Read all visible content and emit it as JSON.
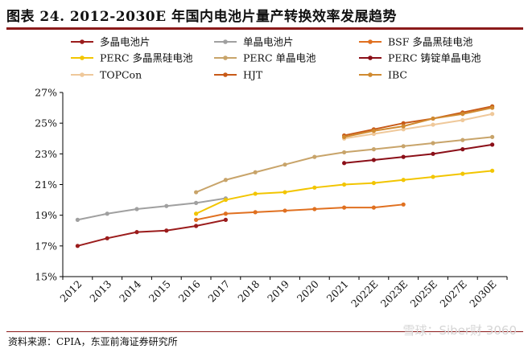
{
  "title": "图表 24. 2012-2030E 年国内电池片量产转换效率发展趋势",
  "source": "资料来源：CPIA，东亚前海证券研究所",
  "watermark": "雪球：Siber财 3060",
  "chart_data": {
    "type": "line",
    "categories": [
      "2012",
      "2013",
      "2014",
      "2015",
      "2016",
      "2017",
      "2018",
      "2019",
      "2020",
      "2021",
      "2022E",
      "2023E",
      "2025E",
      "2027E",
      "2030E"
    ],
    "ylim": [
      15,
      27
    ],
    "yticks": [
      "15%",
      "17%",
      "19%",
      "21%",
      "23%",
      "25%",
      "27%"
    ],
    "grid": false,
    "legend_position": "top",
    "series": [
      {
        "name": "多晶电池片",
        "color": "#9b1c1c",
        "values": [
          17.0,
          17.5,
          17.9,
          18.0,
          18.3,
          18.7,
          null,
          null,
          null,
          null,
          null,
          null,
          null,
          null,
          null
        ]
      },
      {
        "name": "单晶电池片",
        "color": "#a0a0a0",
        "values": [
          18.7,
          19.1,
          19.4,
          19.6,
          19.8,
          20.1,
          null,
          null,
          null,
          null,
          null,
          null,
          null,
          null,
          null
        ]
      },
      {
        "name": "BSF 多晶黑硅电池",
        "color": "#e07020",
        "values": [
          null,
          null,
          null,
          null,
          18.7,
          19.1,
          19.2,
          19.3,
          19.4,
          19.5,
          19.5,
          19.7,
          null,
          null,
          null
        ]
      },
      {
        "name": "PERC 多晶黑硅电池",
        "color": "#f2c500",
        "values": [
          null,
          null,
          null,
          null,
          19.1,
          20.0,
          20.4,
          20.5,
          20.8,
          21.0,
          21.1,
          21.3,
          21.5,
          21.7,
          21.9
        ]
      },
      {
        "name": "PERC 单晶电池",
        "color": "#c8a46a",
        "values": [
          null,
          null,
          null,
          null,
          20.5,
          21.3,
          21.8,
          22.3,
          22.8,
          23.1,
          23.3,
          23.5,
          23.7,
          23.9,
          24.1
        ]
      },
      {
        "name": "PERC 铸锭单晶电池",
        "color": "#8b0f18",
        "values": [
          null,
          null,
          null,
          null,
          null,
          null,
          null,
          null,
          null,
          22.4,
          22.6,
          22.8,
          23.0,
          23.3,
          23.6
        ]
      },
      {
        "name": "TOPCon",
        "color": "#efc89a",
        "values": [
          null,
          null,
          null,
          null,
          null,
          null,
          null,
          null,
          null,
          24.0,
          24.3,
          24.6,
          24.9,
          25.2,
          25.6
        ]
      },
      {
        "name": "HJT",
        "color": "#c85a18",
        "values": [
          null,
          null,
          null,
          null,
          null,
          null,
          null,
          null,
          null,
          24.2,
          24.6,
          25.0,
          25.3,
          25.7,
          26.1
        ]
      },
      {
        "name": "IBC",
        "color": "#d08a30",
        "values": [
          null,
          null,
          null,
          null,
          null,
          null,
          null,
          null,
          null,
          24.1,
          24.5,
          24.8,
          25.3,
          25.6,
          26.0
        ]
      }
    ]
  }
}
